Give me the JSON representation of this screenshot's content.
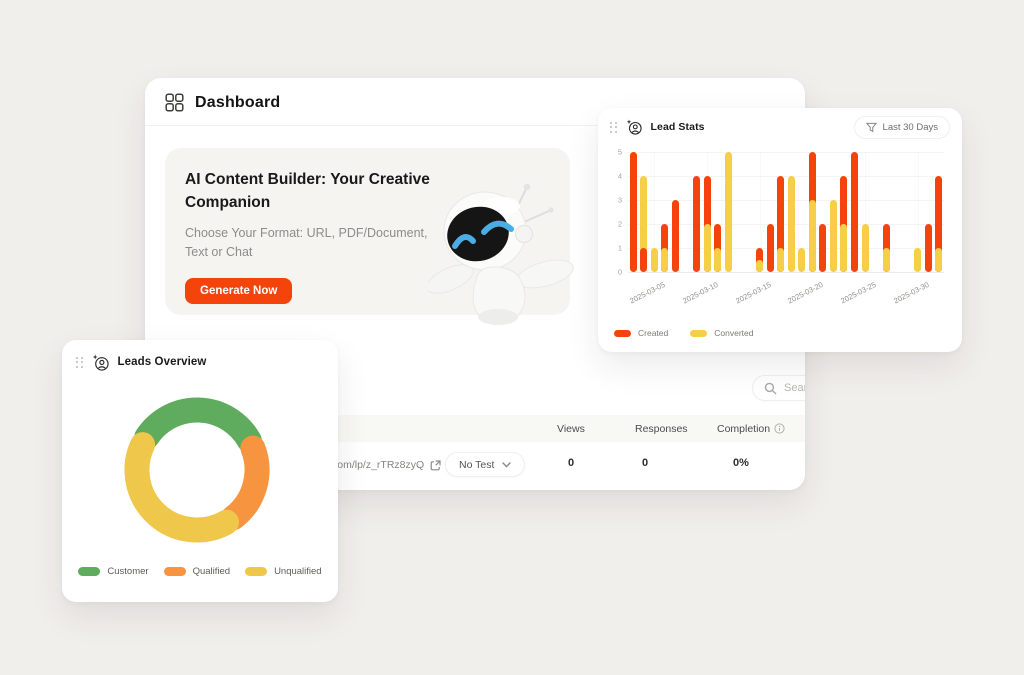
{
  "page": {
    "background": "#F1EFEC"
  },
  "dashboard": {
    "title": "Dashboard",
    "banner": {
      "title": "AI Content Builder: Your Creative Companion",
      "subtitle": "Choose Your Format: URL, PDF/Document, Text or Chat",
      "cta_label": "Generate Now",
      "cta_color": "#F4440B"
    },
    "search": {
      "placeholder": "Search"
    },
    "table": {
      "columns": [
        "Views",
        "Responses",
        "Completion"
      ],
      "row": {
        "url": "com/lp/z_rTRz8zyQ",
        "test_selector": "No Test",
        "views": "0",
        "responses": "0",
        "completion": "0%"
      }
    }
  },
  "lead_stats": {
    "title": "Lead Stats",
    "filter_label": "Last 30 Days"
  },
  "leads_overview": {
    "title": "Leads Overview"
  },
  "icons": {
    "dashboard-grid-icon": "four rounded squares",
    "drag-handle-icon": "six dots",
    "leads-icon": "person in circle with sparkle",
    "filter-icon": "funnel",
    "search-icon": "magnifier",
    "external-link-icon": "box with arrow",
    "info-icon": "circled i",
    "chevron-down-icon": "v",
    "robot-mascot": "white robot with blue smiling eyes"
  },
  "chart_data": [
    {
      "type": "bar",
      "title": "Lead Stats",
      "mode": "overlapping-rounded-bars",
      "ylim": [
        0,
        5
      ],
      "yticks": [
        0,
        1,
        2,
        3,
        4,
        5
      ],
      "grid": true,
      "legend_position": "bottom-left",
      "xtick_labels": [
        "2025-03-05",
        "2025-03-10",
        "2025-03-15",
        "2025-03-20",
        "2025-03-25",
        "2025-03-30"
      ],
      "xtick_slots": [
        3,
        8,
        13,
        18,
        23,
        28
      ],
      "series": [
        {
          "name": "Created",
          "color": "#F4440B",
          "values": [
            5,
            1,
            0,
            2,
            3,
            0,
            4,
            4,
            2,
            0,
            0,
            0,
            1,
            2,
            4,
            0,
            0,
            5,
            2,
            0,
            4,
            5,
            0,
            0,
            2,
            0,
            0,
            0,
            2,
            4
          ]
        },
        {
          "name": "Converted",
          "color": "#F6CE48",
          "values": [
            0,
            4,
            1,
            1,
            0,
            0,
            0,
            2,
            1,
            5,
            0,
            0,
            0.5,
            0,
            1,
            4,
            1,
            3,
            0,
            3,
            2,
            0,
            2,
            0,
            1,
            0,
            0,
            1,
            0,
            1
          ]
        }
      ]
    },
    {
      "type": "pie",
      "donut": true,
      "title": "Leads Overview",
      "labels": [
        "Customer",
        "Qualified",
        "Unqualified"
      ],
      "values": [
        35,
        22,
        43
      ],
      "colors": [
        "#5FAC5F",
        "#F79440",
        "#EFC84B"
      ],
      "legend_position": "bottom"
    }
  ]
}
